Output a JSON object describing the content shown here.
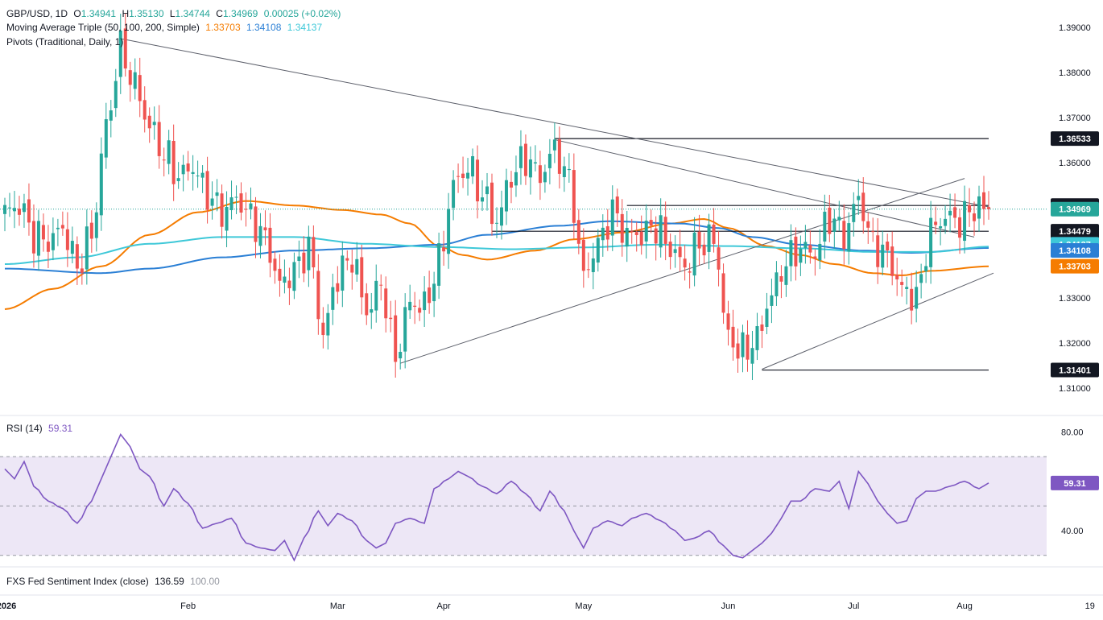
{
  "header": {
    "symbol": "GBP/USD, 1D",
    "o_label": "O",
    "o": "1.34941",
    "h_label": "H",
    "h": "1.35130",
    "l_label": "L",
    "l": "1.34744",
    "c_label": "C",
    "c": "1.34969",
    "change": "0.00025 (+0.02%)",
    "ma_label": "Moving Average Triple (50, 100, 200, Simple)",
    "ma50": "1.33703",
    "ma100": "1.34108",
    "ma200": "1.34137",
    "pivots_label": "Pivots (Traditional, Daily, 1)"
  },
  "rsi_panel": {
    "label": "RSI (14)",
    "value": "59.31"
  },
  "sentiment_panel": {
    "label": "FXS Fed Sentiment Index (close)",
    "value1": "136.59",
    "value2": "100.00"
  },
  "colors": {
    "up": "#26a69a",
    "down": "#ef5350",
    "ma50": "#f57c00",
    "ma100": "#2a7fd5",
    "ma200": "#3ec8d8",
    "rsi": "#7e57c2",
    "rsi_band": "#ede7f6",
    "text": "#131722"
  },
  "chart_data": [
    {
      "type": "candlestick",
      "title": "GBP/USD, 1D",
      "x_ticks": [
        "2026",
        "Feb",
        "Mar",
        "Apr",
        "May",
        "Jun",
        "Jul",
        "Aug",
        "19"
      ],
      "y_ticks": [
        "1.39000",
        "1.38000",
        "1.37000",
        "1.36000",
        "1.35000",
        "1.34000",
        "1.33000",
        "1.32000",
        "1.31000"
      ],
      "ylim": [
        1.305,
        1.3925
      ],
      "price_labels": [
        {
          "text": "1.36533",
          "value": 1.36533,
          "color": "#131722"
        },
        {
          "text": "1.35050",
          "value": 1.3505,
          "color": "#131722"
        },
        {
          "text": "1.34969",
          "value": 1.34969,
          "color": "#26a69a"
        },
        {
          "text": "1.34479",
          "value": 1.34479,
          "color": "#131722"
        },
        {
          "text": "1.34137",
          "value": 1.34137,
          "color": "#3ec8d8"
        },
        {
          "text": "1.34108",
          "value": 1.34108,
          "color": "#2a7fd5"
        },
        {
          "text": "1.33703",
          "value": 1.33703,
          "color": "#f57c00"
        },
        {
          "text": "1.31401",
          "value": 1.31401,
          "color": "#131722"
        }
      ],
      "close_anchors": [
        [
          0,
          1.349
        ],
        [
          3,
          1.3505
        ],
        [
          6,
          1.344
        ],
        [
          9,
          1.3425
        ],
        [
          12,
          1.3455
        ],
        [
          15,
          1.337
        ],
        [
          18,
          1.344
        ],
        [
          21,
          1.368
        ],
        [
          24,
          1.385
        ],
        [
          27,
          1.377
        ],
        [
          30,
          1.368
        ],
        [
          33,
          1.362
        ],
        [
          36,
          1.357
        ],
        [
          39,
          1.359
        ],
        [
          42,
          1.353
        ],
        [
          45,
          1.349
        ],
        [
          48,
          1.352
        ],
        [
          51,
          1.348
        ],
        [
          54,
          1.343
        ],
        [
          57,
          1.333
        ],
        [
          60,
          1.336
        ],
        [
          63,
          1.341
        ],
        [
          66,
          1.322
        ],
        [
          69,
          1.335
        ],
        [
          72,
          1.339
        ],
        [
          75,
          1.327
        ],
        [
          78,
          1.333
        ],
        [
          81,
          1.317
        ],
        [
          84,
          1.329
        ],
        [
          87,
          1.328
        ],
        [
          90,
          1.338
        ],
        [
          93,
          1.355
        ],
        [
          96,
          1.359
        ],
        [
          99,
          1.353
        ],
        [
          102,
          1.347
        ],
        [
          105,
          1.357
        ],
        [
          108,
          1.361
        ],
        [
          111,
          1.357
        ],
        [
          114,
          1.363
        ],
        [
          117,
          1.356
        ],
        [
          120,
          1.335
        ],
        [
          123,
          1.342
        ],
        [
          126,
          1.349
        ],
        [
          129,
          1.344
        ],
        [
          132,
          1.344
        ],
        [
          135,
          1.346
        ],
        [
          138,
          1.341
        ],
        [
          141,
          1.337
        ],
        [
          144,
          1.342
        ],
        [
          147,
          1.343
        ],
        [
          150,
          1.321
        ],
        [
          153,
          1.318
        ],
        [
          156,
          1.321
        ],
        [
          159,
          1.331
        ],
        [
          162,
          1.338
        ],
        [
          165,
          1.341
        ],
        [
          168,
          1.34
        ],
        [
          171,
          1.348
        ],
        [
          174,
          1.344
        ],
        [
          177,
          1.352
        ],
        [
          180,
          1.342
        ],
        [
          183,
          1.339
        ],
        [
          186,
          1.332
        ],
        [
          189,
          1.33
        ],
        [
          192,
          1.345
        ],
        [
          195,
          1.348
        ],
        [
          198,
          1.347
        ],
        [
          201,
          1.35
        ],
        [
          204,
          1.3497
        ]
      ],
      "series": [
        {
          "name": "50",
          "anchors": [
            [
              0,
              1.3275
            ],
            [
              10,
              1.332
            ],
            [
              20,
              1.337
            ],
            [
              30,
              1.344
            ],
            [
              40,
              1.349
            ],
            [
              50,
              1.3515
            ],
            [
              60,
              1.3505
            ],
            [
              70,
              1.3495
            ],
            [
              78,
              1.3485
            ],
            [
              84,
              1.3465
            ],
            [
              90,
              1.3415
            ],
            [
              95,
              1.3395
            ],
            [
              100,
              1.3385
            ],
            [
              110,
              1.3405
            ],
            [
              118,
              1.343
            ],
            [
              128,
              1.3445
            ],
            [
              138,
              1.3465
            ],
            [
              145,
              1.3475
            ],
            [
              150,
              1.3455
            ],
            [
              158,
              1.3415
            ],
            [
              165,
              1.3395
            ],
            [
              172,
              1.3375
            ],
            [
              180,
              1.3355
            ],
            [
              186,
              1.335
            ],
            [
              192,
              1.336
            ],
            [
              204,
              1.337
            ]
          ]
        },
        {
          "name": "100",
          "anchors": [
            [
              0,
              1.3365
            ],
            [
              20,
              1.3355
            ],
            [
              30,
              1.3365
            ],
            [
              45,
              1.339
            ],
            [
              60,
              1.3405
            ],
            [
              75,
              1.341
            ],
            [
              90,
              1.3418
            ],
            [
              100,
              1.344
            ],
            [
              115,
              1.346
            ],
            [
              125,
              1.347
            ],
            [
              140,
              1.3465
            ],
            [
              148,
              1.3455
            ],
            [
              155,
              1.3435
            ],
            [
              165,
              1.3418
            ],
            [
              178,
              1.3405
            ],
            [
              188,
              1.34
            ],
            [
              204,
              1.34108
            ]
          ]
        },
        {
          "name": "200",
          "anchors": [
            [
              0,
              1.3375
            ],
            [
              15,
              1.339
            ],
            [
              30,
              1.342
            ],
            [
              45,
              1.3435
            ],
            [
              60,
              1.3435
            ],
            [
              75,
              1.342
            ],
            [
              90,
              1.3413
            ],
            [
              105,
              1.3408
            ],
            [
              120,
              1.3412
            ],
            [
              135,
              1.3418
            ],
            [
              150,
              1.3415
            ],
            [
              165,
              1.341
            ],
            [
              180,
              1.3402
            ],
            [
              192,
              1.3402
            ],
            [
              204,
              1.34137
            ]
          ]
        }
      ],
      "pivot_levels": [
        {
          "value": 1.36533,
          "from": 114,
          "to": 204
        },
        {
          "value": 1.3505,
          "from": 129,
          "to": 204
        },
        {
          "value": 1.34479,
          "from": 101,
          "to": 204
        },
        {
          "value": 1.31401,
          "from": 157,
          "to": 204
        }
      ],
      "trendlines": [
        {
          "from": [
            24,
            1.3875
          ],
          "to": [
            204,
            1.3502
          ]
        },
        {
          "from": [
            114,
            1.3651
          ],
          "to": [
            201,
            1.3435
          ]
        },
        {
          "from": [
            82,
            1.3155
          ],
          "to": [
            199,
            1.3565
          ]
        },
        {
          "from": [
            157,
            1.3142
          ],
          "to": [
            205,
            1.3355
          ]
        }
      ],
      "last_close": 1.34969
    },
    {
      "type": "line",
      "title": "RSI (14)",
      "y_ticks": [
        "80.00",
        "40.00"
      ],
      "ylim": [
        26,
        86
      ],
      "band": [
        30,
        70
      ],
      "midline": 50,
      "last_value": 59.31,
      "x_count": 205,
      "anchors": [
        [
          0,
          65
        ],
        [
          2,
          61
        ],
        [
          4,
          68
        ],
        [
          6,
          58
        ],
        [
          9,
          52
        ],
        [
          12,
          49
        ],
        [
          15,
          43
        ],
        [
          18,
          52
        ],
        [
          20,
          61
        ],
        [
          22,
          70
        ],
        [
          24,
          79
        ],
        [
          26,
          74
        ],
        [
          28,
          65
        ],
        [
          30,
          62
        ],
        [
          33,
          50
        ],
        [
          35,
          57
        ],
        [
          38,
          51
        ],
        [
          41,
          41
        ],
        [
          44,
          43
        ],
        [
          47,
          45
        ],
        [
          50,
          35
        ],
        [
          53,
          33
        ],
        [
          56,
          32
        ],
        [
          58,
          36
        ],
        [
          60,
          28
        ],
        [
          62,
          37
        ],
        [
          65,
          48
        ],
        [
          67,
          42
        ],
        [
          69,
          47
        ],
        [
          72,
          44
        ],
        [
          75,
          36
        ],
        [
          77,
          33
        ],
        [
          79,
          35
        ],
        [
          81,
          43
        ],
        [
          84,
          45
        ],
        [
          87,
          43
        ],
        [
          89,
          57
        ],
        [
          92,
          61
        ],
        [
          94,
          64
        ],
        [
          96,
          62
        ],
        [
          99,
          58
        ],
        [
          102,
          55
        ],
        [
          105,
          60
        ],
        [
          108,
          55
        ],
        [
          111,
          48
        ],
        [
          113,
          56
        ],
        [
          116,
          48
        ],
        [
          118,
          40
        ],
        [
          120,
          33
        ],
        [
          122,
          41
        ],
        [
          125,
          44
        ],
        [
          128,
          42
        ],
        [
          130,
          45
        ],
        [
          133,
          47
        ],
        [
          136,
          44
        ],
        [
          139,
          40
        ],
        [
          141,
          36
        ],
        [
          143,
          37
        ],
        [
          146,
          40
        ],
        [
          149,
          34
        ],
        [
          151,
          30
        ],
        [
          153,
          29
        ],
        [
          155,
          32
        ],
        [
          157,
          35
        ],
        [
          159,
          39
        ],
        [
          161,
          45
        ],
        [
          163,
          52
        ],
        [
          165,
          52
        ],
        [
          168,
          57
        ],
        [
          171,
          56
        ],
        [
          173,
          60
        ],
        [
          175,
          49
        ],
        [
          177,
          64
        ],
        [
          179,
          59
        ],
        [
          181,
          52
        ],
        [
          183,
          47
        ],
        [
          185,
          43
        ],
        [
          187,
          44
        ],
        [
          189,
          53
        ],
        [
          191,
          56
        ],
        [
          193,
          56
        ],
        [
          196,
          58
        ],
        [
          199,
          60
        ],
        [
          202,
          57
        ],
        [
          204,
          59.31
        ]
      ]
    }
  ]
}
